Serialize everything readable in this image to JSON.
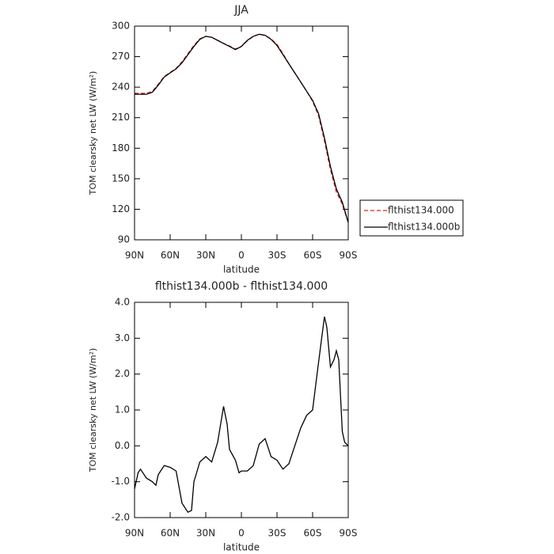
{
  "chart_data": [
    {
      "type": "line",
      "title": "JJA",
      "xlabel": "latitude",
      "ylabel": "TOM clearsky net LW (W/m²)",
      "x": [
        90,
        85,
        80,
        75,
        70,
        65,
        60,
        55,
        50,
        45,
        40,
        35,
        30,
        25,
        20,
        15,
        10,
        5,
        0,
        -5,
        -10,
        -15,
        -20,
        -25,
        -30,
        -35,
        -40,
        -45,
        -50,
        -55,
        -60,
        -65,
        -70,
        -75,
        -80,
        -85,
        -90
      ],
      "series": [
        {
          "name": "flthist134.000",
          "color": "#e0201c",
          "dash": true,
          "values": [
            234,
            234,
            234,
            236,
            243,
            250.5,
            254.5,
            258.5,
            265,
            273,
            281,
            287.5,
            290,
            289,
            286,
            283,
            280.5,
            277.5,
            280,
            285.5,
            290,
            292,
            291,
            287.5,
            282,
            273,
            263,
            254,
            245,
            236,
            226,
            212,
            187,
            159,
            137,
            125,
            107
          ]
        },
        {
          "name": "flthist134.000b",
          "color": "#000000",
          "dash": false,
          "values": [
            233,
            233,
            233,
            235,
            242,
            250,
            254,
            258,
            264,
            272,
            280,
            287,
            290,
            289,
            286,
            283,
            280,
            277,
            280,
            286,
            290,
            292,
            291,
            287,
            281,
            272,
            263,
            254,
            245,
            236,
            227,
            214,
            190,
            162,
            140,
            127,
            107
          ]
        }
      ],
      "xlim": [
        90,
        -90
      ],
      "xticks": [
        {
          "value": 90,
          "label": "90N"
        },
        {
          "value": 60,
          "label": "60N"
        },
        {
          "value": 30,
          "label": "30N"
        },
        0,
        {
          "value": -30,
          "label": "30S"
        },
        {
          "value": -60,
          "label": "60S"
        },
        {
          "value": -90,
          "label": "90S"
        }
      ],
      "ylim": [
        90,
        300
      ],
      "yticks": [
        90,
        120,
        150,
        180,
        210,
        240,
        270,
        300
      ],
      "legend": "right"
    },
    {
      "type": "line",
      "title": "flthist134.000b - flthist134.000",
      "xlabel": "latitude",
      "ylabel": "TOM clearsky net LW (W/m²)",
      "x": [
        90,
        87,
        85,
        80,
        75,
        72,
        70,
        65,
        60,
        55,
        50,
        45,
        42,
        40,
        35,
        30,
        25,
        20,
        15,
        12,
        10,
        5,
        2,
        0,
        -5,
        -10,
        -15,
        -20,
        -25,
        -30,
        -35,
        -40,
        -45,
        -50,
        -55,
        -60,
        -63,
        -68,
        -70,
        -72,
        -75,
        -78,
        -80,
        -82,
        -85,
        -87,
        -90
      ],
      "series": [
        {
          "color": "#000000",
          "dash": false,
          "values": [
            -1.2,
            -0.75,
            -0.65,
            -0.9,
            -1.0,
            -1.1,
            -0.8,
            -0.55,
            -0.6,
            -0.7,
            -1.6,
            -1.85,
            -1.8,
            -1.0,
            -0.45,
            -0.3,
            -0.45,
            0.1,
            1.1,
            0.6,
            -0.1,
            -0.4,
            -0.75,
            -0.7,
            -0.7,
            -0.55,
            0.05,
            0.2,
            -0.3,
            -0.4,
            -0.65,
            -0.5,
            0.0,
            0.5,
            0.85,
            1.0,
            1.8,
            3.1,
            3.6,
            3.3,
            2.2,
            2.4,
            2.65,
            2.4,
            0.4,
            0.1,
            0.0
          ]
        }
      ],
      "xlim": [
        90,
        -90
      ],
      "xticks": [
        {
          "value": 90,
          "label": "90N"
        },
        {
          "value": 60,
          "label": "60N"
        },
        {
          "value": 30,
          "label": "30N"
        },
        0,
        {
          "value": -30,
          "label": "30S"
        },
        {
          "value": -60,
          "label": "60S"
        },
        {
          "value": -90,
          "label": "90S"
        }
      ],
      "ylim": [
        -2,
        4
      ],
      "yticks": [
        {
          "value": -2,
          "label": "-2.0"
        },
        {
          "value": -1,
          "label": "-1.0"
        },
        {
          "value": 0,
          "label": "0.0"
        },
        {
          "value": 1,
          "label": "1.0"
        },
        {
          "value": 2,
          "label": "2.0"
        },
        {
          "value": 3,
          "label": "3.0"
        },
        {
          "value": 4,
          "label": "4.0"
        }
      ]
    }
  ]
}
